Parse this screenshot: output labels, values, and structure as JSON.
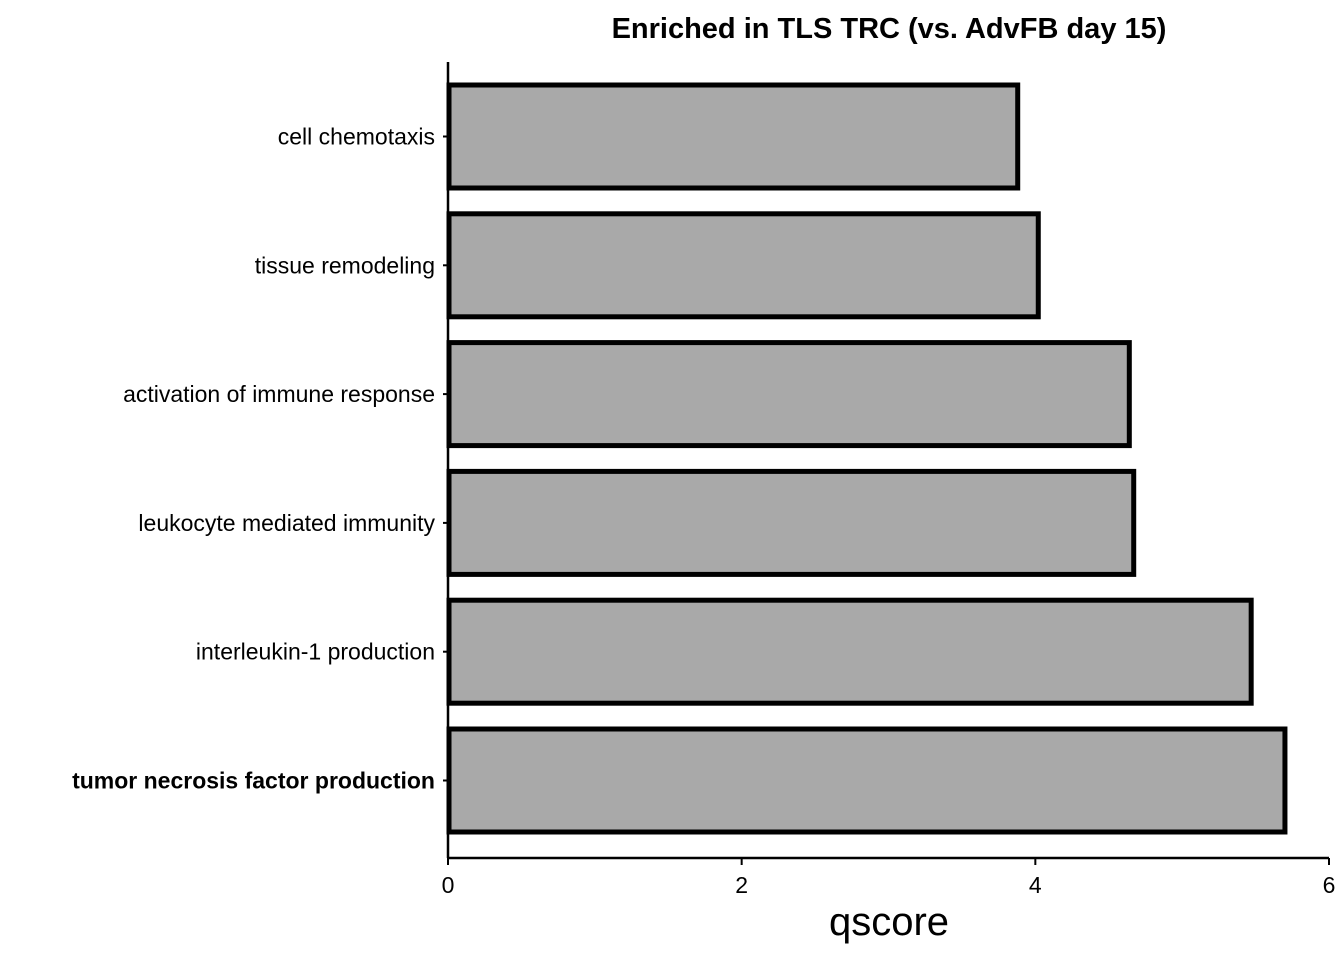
{
  "chart_data": {
    "type": "bar",
    "orientation": "horizontal",
    "title": "Enriched in TLS TRC (vs. AdvFB day 15)",
    "xlabel": "qscore",
    "ylabel": "",
    "xlim": [
      0,
      6
    ],
    "xticks": [
      0,
      2,
      4,
      6
    ],
    "grid": false,
    "legend": "none",
    "categories": [
      "cell chemotaxis",
      "tissue remodeling",
      "activation of immune response",
      "leukocyte mediated immunity",
      "interleukin-1 production",
      "tumor necrosis factor production"
    ],
    "values": [
      3.88,
      4.02,
      4.64,
      4.67,
      5.47,
      5.7
    ],
    "highlighted": [
      "tumor necrosis factor production"
    ],
    "bar_fill": "#a9a9a9",
    "bar_stroke": "#000000"
  }
}
